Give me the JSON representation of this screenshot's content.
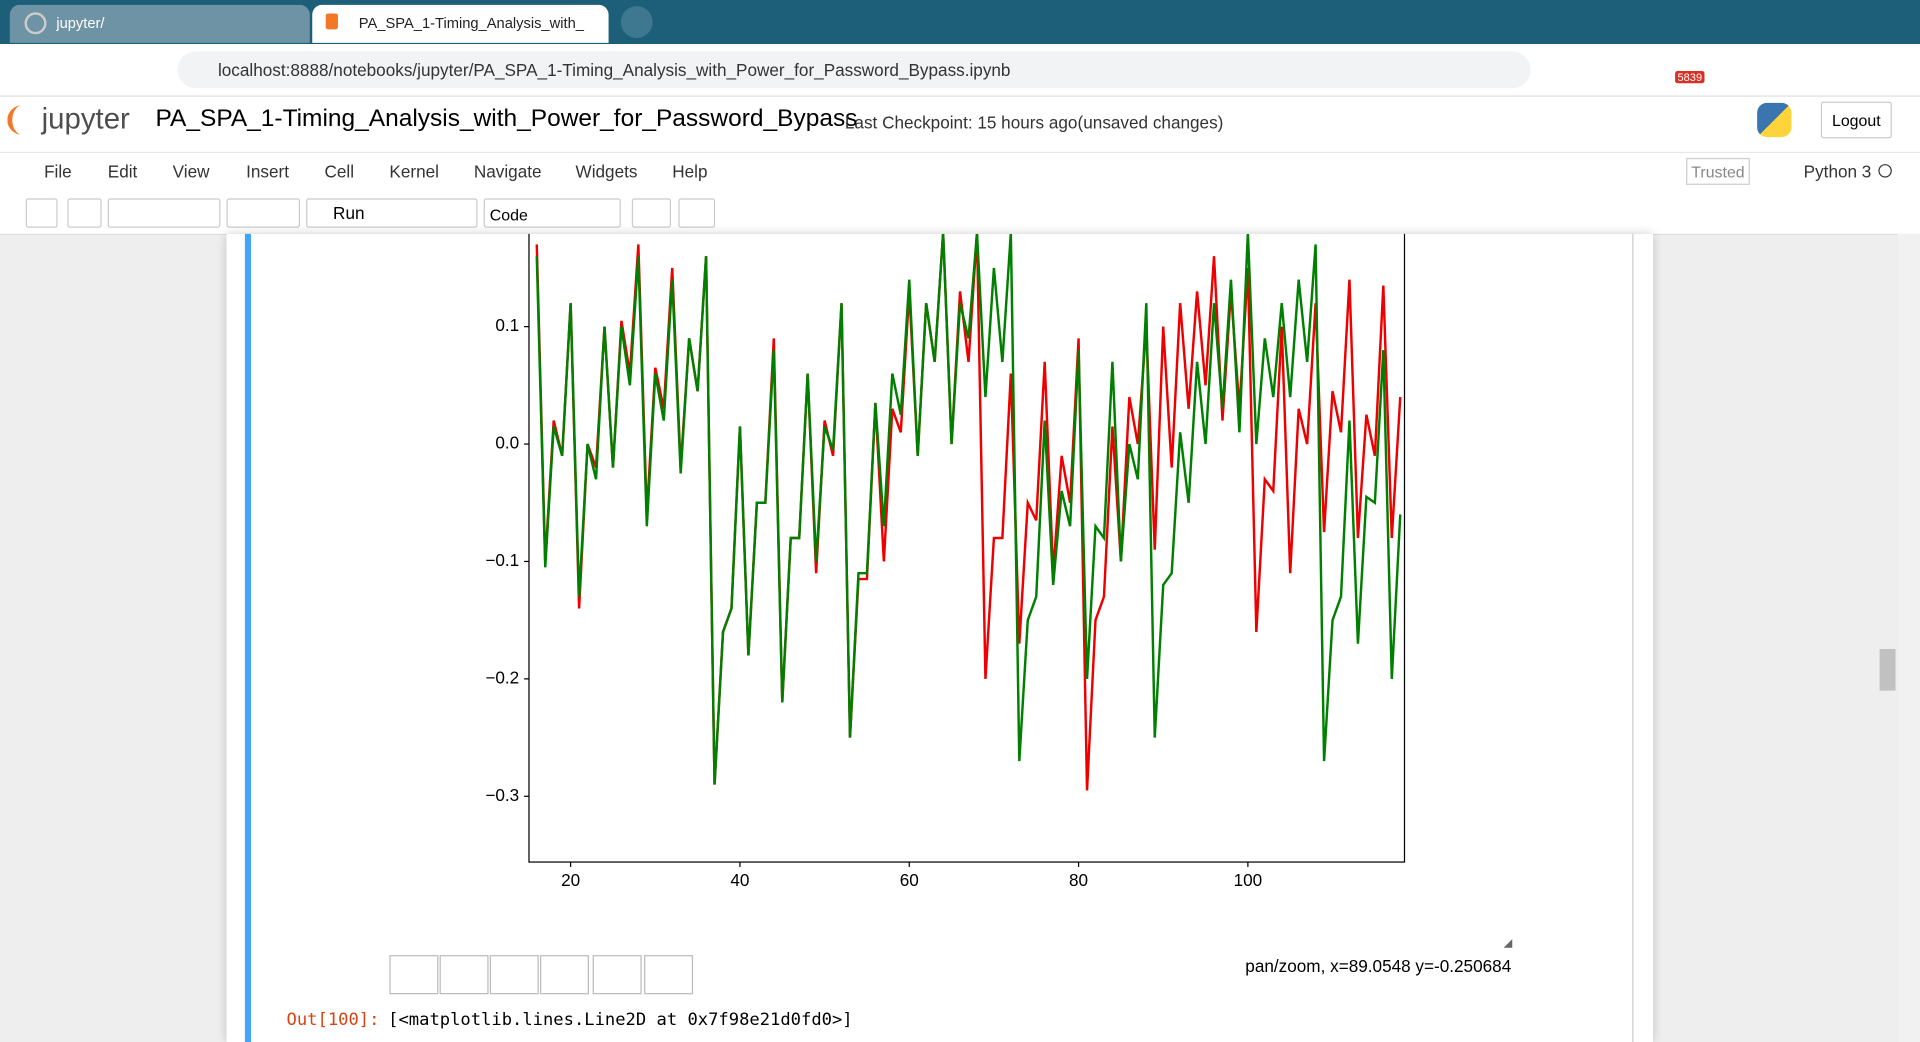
{
  "browser": {
    "tabs": [
      "jupyter/",
      "PA_SPA_1-Timing_Analysis_with_"
    ],
    "url": "localhost:8888/notebooks/jupyter/PA_SPA_1-Timing_Analysis_with_Power_for_Password_Bypass.ipynb",
    "badge": "5839"
  },
  "notebook": {
    "logo": "jupyter",
    "name": "PA_SPA_1-Timing_Analysis_with_Power_for_Password_Bypass",
    "checkpoint": "Last Checkpoint: 15 hours ago",
    "status": "(unsaved changes)",
    "logout": "Logout",
    "menu": [
      "File",
      "Edit",
      "View",
      "Insert",
      "Cell",
      "Kernel",
      "Navigate",
      "Widgets",
      "Help"
    ],
    "trusted": "Trusted",
    "kernel": "Python 3",
    "run": "Run",
    "cell_type": "Code"
  },
  "figure": {
    "status": "pan/zoom, x=89.0548 y=-0.250684"
  },
  "output": {
    "prompt": "Out[100]:",
    "text": "[<matplotlib.lines.Line2D at 0x7f98e21d0fd0>]"
  },
  "chart_data": {
    "type": "line",
    "x": [
      16,
      17,
      18,
      19,
      20,
      21,
      22,
      23,
      24,
      25,
      26,
      27,
      28,
      29,
      30,
      31,
      32,
      33,
      34,
      35,
      36,
      37,
      38,
      39,
      40,
      41,
      42,
      43,
      44,
      45,
      46,
      47,
      48,
      49,
      50,
      51,
      52,
      53,
      54,
      55,
      56,
      57,
      58,
      59,
      60,
      61,
      62,
      63,
      64,
      65,
      66,
      67,
      68,
      69,
      70,
      71,
      72,
      73,
      74,
      75,
      76,
      77,
      78,
      79,
      80,
      81,
      82,
      83,
      84,
      85,
      86,
      87,
      88,
      89,
      90,
      91,
      92,
      93,
      94,
      95,
      96,
      97,
      98,
      99,
      100,
      101,
      102,
      103,
      104,
      105,
      106,
      107,
      108,
      109,
      110,
      111,
      112,
      113,
      114,
      115,
      116,
      117,
      118
    ],
    "series": [
      {
        "name": "red",
        "color": "#ee0000",
        "values": [
          0.17,
          -0.1,
          0.02,
          -0.01,
          0.12,
          -0.14,
          0.0,
          -0.02,
          0.1,
          -0.02,
          0.105,
          0.06,
          0.17,
          -0.06,
          0.065,
          0.03,
          0.15,
          -0.02,
          0.09,
          0.045,
          0.16,
          -0.29,
          -0.16,
          -0.14,
          0.015,
          -0.18,
          -0.05,
          -0.05,
          0.09,
          -0.22,
          -0.08,
          -0.08,
          0.06,
          -0.11,
          0.02,
          -0.01,
          0.12,
          -0.25,
          -0.115,
          -0.115,
          0.035,
          -0.1,
          0.03,
          0.01,
          0.13,
          -0.01,
          0.12,
          0.07,
          0.18,
          0.0,
          0.13,
          0.07,
          0.18,
          -0.2,
          -0.08,
          -0.08,
          0.06,
          -0.17,
          -0.05,
          -0.065,
          0.07,
          -0.11,
          -0.01,
          -0.05,
          0.09,
          -0.295,
          -0.15,
          -0.13,
          0.015,
          -0.1,
          0.04,
          0.0,
          0.1,
          -0.09,
          0.1,
          -0.02,
          0.12,
          0.03,
          0.13,
          0.05,
          0.16,
          0.02,
          0.13,
          0.03,
          0.15,
          -0.16,
          -0.03,
          -0.04,
          0.1,
          -0.11,
          0.03,
          0.0,
          0.12,
          -0.075,
          0.045,
          0.01,
          0.14,
          -0.08,
          0.025,
          -0.01,
          0.135,
          -0.08,
          0.04
        ]
      },
      {
        "name": "green",
        "color": "#008000",
        "values": [
          0.16,
          -0.105,
          0.015,
          -0.01,
          0.12,
          -0.13,
          0.0,
          -0.03,
          0.1,
          -0.02,
          0.1,
          0.05,
          0.16,
          -0.07,
          0.06,
          0.02,
          0.14,
          -0.025,
          0.09,
          0.045,
          0.16,
          -0.29,
          -0.16,
          -0.14,
          0.015,
          -0.18,
          -0.05,
          -0.05,
          0.08,
          -0.22,
          -0.08,
          -0.08,
          0.06,
          -0.1,
          0.015,
          -0.005,
          0.12,
          -0.25,
          -0.11,
          -0.11,
          0.035,
          -0.07,
          0.06,
          0.025,
          0.14,
          -0.01,
          0.12,
          0.07,
          0.18,
          0.0,
          0.12,
          0.09,
          0.18,
          0.04,
          0.15,
          0.07,
          0.18,
          -0.27,
          -0.15,
          -0.13,
          0.02,
          -0.12,
          -0.04,
          -0.07,
          0.08,
          -0.2,
          -0.07,
          -0.08,
          0.07,
          -0.1,
          0.0,
          -0.03,
          0.12,
          -0.25,
          -0.12,
          -0.11,
          0.01,
          -0.05,
          0.07,
          0.0,
          0.12,
          0.03,
          0.14,
          0.01,
          0.18,
          0.0,
          0.09,
          0.04,
          0.12,
          0.04,
          0.14,
          0.07,
          0.17,
          -0.27,
          -0.15,
          -0.13,
          0.02,
          -0.17,
          -0.045,
          -0.05,
          0.08,
          -0.2,
          -0.06
        ]
      }
    ],
    "xlim": [
      15.08,
      118.5
    ],
    "ylim": [
      -0.356,
      0.179
    ],
    "xticks": [
      20,
      40,
      60,
      80,
      100
    ],
    "yticks": [
      {
        "value": -0.3,
        "label": "−0.3"
      },
      {
        "value": -0.2,
        "label": "−0.2"
      },
      {
        "value": -0.1,
        "label": "−0.1"
      },
      {
        "value": 0.0,
        "label": "0.0"
      },
      0.1
    ]
  }
}
